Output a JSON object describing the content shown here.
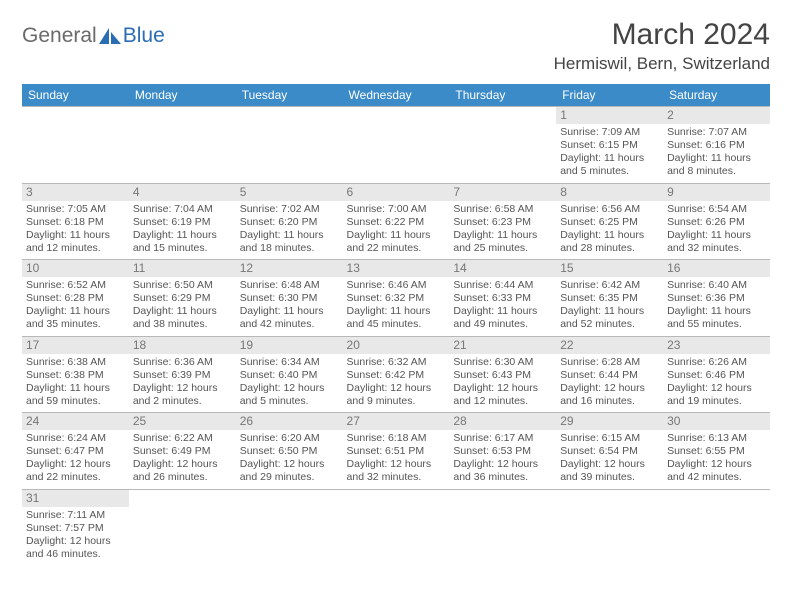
{
  "logo": {
    "part1": "General",
    "part2": "Blue"
  },
  "title": "March 2024",
  "location": "Hermiswil, Bern, Switzerland",
  "colors": {
    "header_bg": "#3b8bc9",
    "header_fg": "#ffffff",
    "daynum_bg": "#e8e8e8",
    "border": "#b8b8b8",
    "logo_gray": "#6a6a6a",
    "logo_blue": "#2a6db2"
  },
  "weekdays": [
    "Sunday",
    "Monday",
    "Tuesday",
    "Wednesday",
    "Thursday",
    "Friday",
    "Saturday"
  ],
  "weeks": [
    [
      null,
      null,
      null,
      null,
      null,
      {
        "n": "1",
        "sr": "Sunrise: 7:09 AM",
        "ss": "Sunset: 6:15 PM",
        "dl1": "Daylight: 11 hours",
        "dl2": "and 5 minutes."
      },
      {
        "n": "2",
        "sr": "Sunrise: 7:07 AM",
        "ss": "Sunset: 6:16 PM",
        "dl1": "Daylight: 11 hours",
        "dl2": "and 8 minutes."
      }
    ],
    [
      {
        "n": "3",
        "sr": "Sunrise: 7:05 AM",
        "ss": "Sunset: 6:18 PM",
        "dl1": "Daylight: 11 hours",
        "dl2": "and 12 minutes."
      },
      {
        "n": "4",
        "sr": "Sunrise: 7:04 AM",
        "ss": "Sunset: 6:19 PM",
        "dl1": "Daylight: 11 hours",
        "dl2": "and 15 minutes."
      },
      {
        "n": "5",
        "sr": "Sunrise: 7:02 AM",
        "ss": "Sunset: 6:20 PM",
        "dl1": "Daylight: 11 hours",
        "dl2": "and 18 minutes."
      },
      {
        "n": "6",
        "sr": "Sunrise: 7:00 AM",
        "ss": "Sunset: 6:22 PM",
        "dl1": "Daylight: 11 hours",
        "dl2": "and 22 minutes."
      },
      {
        "n": "7",
        "sr": "Sunrise: 6:58 AM",
        "ss": "Sunset: 6:23 PM",
        "dl1": "Daylight: 11 hours",
        "dl2": "and 25 minutes."
      },
      {
        "n": "8",
        "sr": "Sunrise: 6:56 AM",
        "ss": "Sunset: 6:25 PM",
        "dl1": "Daylight: 11 hours",
        "dl2": "and 28 minutes."
      },
      {
        "n": "9",
        "sr": "Sunrise: 6:54 AM",
        "ss": "Sunset: 6:26 PM",
        "dl1": "Daylight: 11 hours",
        "dl2": "and 32 minutes."
      }
    ],
    [
      {
        "n": "10",
        "sr": "Sunrise: 6:52 AM",
        "ss": "Sunset: 6:28 PM",
        "dl1": "Daylight: 11 hours",
        "dl2": "and 35 minutes."
      },
      {
        "n": "11",
        "sr": "Sunrise: 6:50 AM",
        "ss": "Sunset: 6:29 PM",
        "dl1": "Daylight: 11 hours",
        "dl2": "and 38 minutes."
      },
      {
        "n": "12",
        "sr": "Sunrise: 6:48 AM",
        "ss": "Sunset: 6:30 PM",
        "dl1": "Daylight: 11 hours",
        "dl2": "and 42 minutes."
      },
      {
        "n": "13",
        "sr": "Sunrise: 6:46 AM",
        "ss": "Sunset: 6:32 PM",
        "dl1": "Daylight: 11 hours",
        "dl2": "and 45 minutes."
      },
      {
        "n": "14",
        "sr": "Sunrise: 6:44 AM",
        "ss": "Sunset: 6:33 PM",
        "dl1": "Daylight: 11 hours",
        "dl2": "and 49 minutes."
      },
      {
        "n": "15",
        "sr": "Sunrise: 6:42 AM",
        "ss": "Sunset: 6:35 PM",
        "dl1": "Daylight: 11 hours",
        "dl2": "and 52 minutes."
      },
      {
        "n": "16",
        "sr": "Sunrise: 6:40 AM",
        "ss": "Sunset: 6:36 PM",
        "dl1": "Daylight: 11 hours",
        "dl2": "and 55 minutes."
      }
    ],
    [
      {
        "n": "17",
        "sr": "Sunrise: 6:38 AM",
        "ss": "Sunset: 6:38 PM",
        "dl1": "Daylight: 11 hours",
        "dl2": "and 59 minutes."
      },
      {
        "n": "18",
        "sr": "Sunrise: 6:36 AM",
        "ss": "Sunset: 6:39 PM",
        "dl1": "Daylight: 12 hours",
        "dl2": "and 2 minutes."
      },
      {
        "n": "19",
        "sr": "Sunrise: 6:34 AM",
        "ss": "Sunset: 6:40 PM",
        "dl1": "Daylight: 12 hours",
        "dl2": "and 5 minutes."
      },
      {
        "n": "20",
        "sr": "Sunrise: 6:32 AM",
        "ss": "Sunset: 6:42 PM",
        "dl1": "Daylight: 12 hours",
        "dl2": "and 9 minutes."
      },
      {
        "n": "21",
        "sr": "Sunrise: 6:30 AM",
        "ss": "Sunset: 6:43 PM",
        "dl1": "Daylight: 12 hours",
        "dl2": "and 12 minutes."
      },
      {
        "n": "22",
        "sr": "Sunrise: 6:28 AM",
        "ss": "Sunset: 6:44 PM",
        "dl1": "Daylight: 12 hours",
        "dl2": "and 16 minutes."
      },
      {
        "n": "23",
        "sr": "Sunrise: 6:26 AM",
        "ss": "Sunset: 6:46 PM",
        "dl1": "Daylight: 12 hours",
        "dl2": "and 19 minutes."
      }
    ],
    [
      {
        "n": "24",
        "sr": "Sunrise: 6:24 AM",
        "ss": "Sunset: 6:47 PM",
        "dl1": "Daylight: 12 hours",
        "dl2": "and 22 minutes."
      },
      {
        "n": "25",
        "sr": "Sunrise: 6:22 AM",
        "ss": "Sunset: 6:49 PM",
        "dl1": "Daylight: 12 hours",
        "dl2": "and 26 minutes."
      },
      {
        "n": "26",
        "sr": "Sunrise: 6:20 AM",
        "ss": "Sunset: 6:50 PM",
        "dl1": "Daylight: 12 hours",
        "dl2": "and 29 minutes."
      },
      {
        "n": "27",
        "sr": "Sunrise: 6:18 AM",
        "ss": "Sunset: 6:51 PM",
        "dl1": "Daylight: 12 hours",
        "dl2": "and 32 minutes."
      },
      {
        "n": "28",
        "sr": "Sunrise: 6:17 AM",
        "ss": "Sunset: 6:53 PM",
        "dl1": "Daylight: 12 hours",
        "dl2": "and 36 minutes."
      },
      {
        "n": "29",
        "sr": "Sunrise: 6:15 AM",
        "ss": "Sunset: 6:54 PM",
        "dl1": "Daylight: 12 hours",
        "dl2": "and 39 minutes."
      },
      {
        "n": "30",
        "sr": "Sunrise: 6:13 AM",
        "ss": "Sunset: 6:55 PM",
        "dl1": "Daylight: 12 hours",
        "dl2": "and 42 minutes."
      }
    ],
    [
      {
        "n": "31",
        "sr": "Sunrise: 7:11 AM",
        "ss": "Sunset: 7:57 PM",
        "dl1": "Daylight: 12 hours",
        "dl2": "and 46 minutes."
      },
      null,
      null,
      null,
      null,
      null,
      null
    ]
  ]
}
